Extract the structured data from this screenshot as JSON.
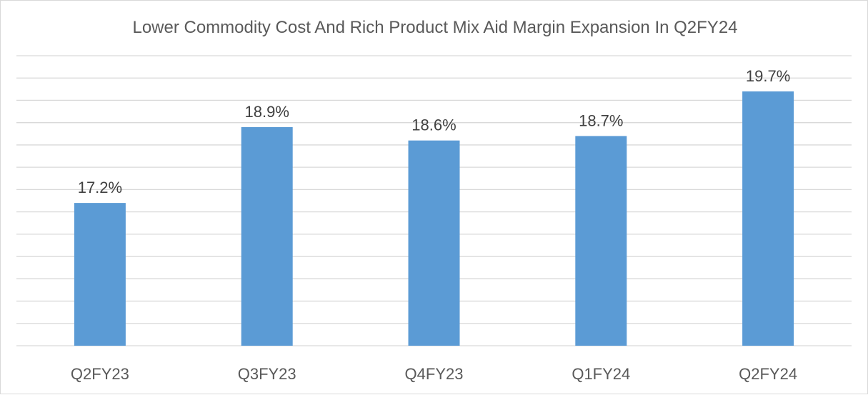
{
  "chart_data": {
    "type": "bar",
    "title": "Lower Commodity Cost And Rich Product Mix Aid Margin Expansion In Q2FY24",
    "categories": [
      "Q2FY23",
      "Q3FY23",
      "Q4FY23",
      "Q1FY24",
      "Q2FY24"
    ],
    "values": [
      17.2,
      18.9,
      18.6,
      18.7,
      19.7
    ],
    "data_labels": [
      "17.2%",
      "18.9%",
      "18.6%",
      "18.7%",
      "19.7%"
    ],
    "value_unit": "%",
    "ylim": [
      14.0,
      20.5
    ],
    "gridline_step": 0.5,
    "y_tick_labels_shown": false,
    "xlabel": "",
    "ylabel": "",
    "grid": true,
    "legend": "none",
    "colors": {
      "bar": "#5b9bd5",
      "grid": "#d9d9d9",
      "title": "#595959",
      "label": "#404040"
    }
  }
}
